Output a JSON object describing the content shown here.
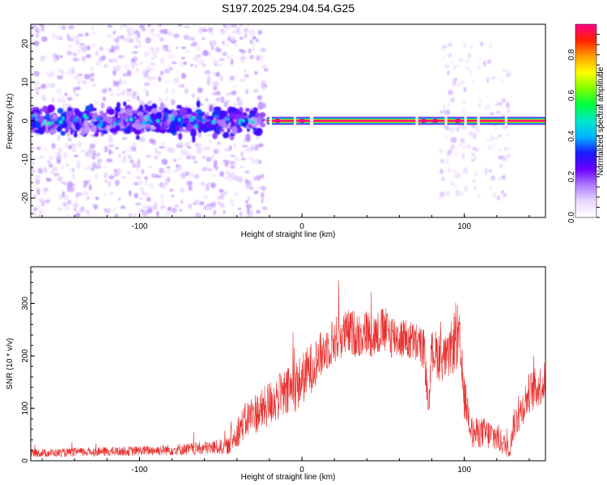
{
  "title": "S197.2025.294.04.54.G25",
  "chart_data": [
    {
      "type": "heatmap",
      "name": "spectrogram",
      "xlabel": "Height of straight line (km)",
      "ylabel": "Frequency (Hz)",
      "xlim": [
        -167,
        150
      ],
      "ylim": [
        -25,
        25
      ],
      "xticks": [
        -100,
        0,
        100
      ],
      "yticks": [
        -20,
        -10,
        0,
        10,
        20
      ],
      "colorbar": {
        "label": "Normalized spectral amplitude",
        "range": [
          0,
          0.95
        ],
        "ticks": [
          0.0,
          0.2,
          0.4,
          0.6,
          0.8
        ],
        "colors": [
          "#ffffff",
          "#ead9ff",
          "#b07cff",
          "#6a00ff",
          "#1a1aff",
          "#00b4ff",
          "#00e8c8",
          "#00ff40",
          "#80ff00",
          "#ffff00",
          "#ffa000",
          "#ff2000",
          "#ff0088"
        ]
      },
      "features": [
        {
          "label": "scattered noise region",
          "x_range": [
            -167,
            -30
          ],
          "freq_spread_hz": 25,
          "amplitude": 0.15
        },
        {
          "label": "dense low-frequency band",
          "x_range": [
            -167,
            -30
          ],
          "freq_center_hz": 0,
          "freq_halfwidth_hz": 5,
          "amplitude": 0.25
        },
        {
          "label": "carrier line",
          "x_range": [
            -30,
            150
          ],
          "freq_center_hz": 0,
          "amplitude": 0.95
        },
        {
          "label": "upper noise patch",
          "x_range": [
            85,
            128
          ],
          "freq_spread_hz": 20,
          "amplitude": 0.12
        }
      ]
    },
    {
      "type": "line",
      "name": "snr",
      "xlabel": "Height of straight line (km)",
      "ylabel": "SNR (10 * v/v)",
      "xlim": [
        -167,
        150
      ],
      "ylim": [
        0,
        370
      ],
      "xticks": [
        -100,
        0,
        100
      ],
      "yticks": [
        0,
        100,
        200,
        300
      ],
      "color": "#e8302e",
      "series": [
        {
          "name": "SNR",
          "x": [
            -167,
            -150,
            -130,
            -110,
            -90,
            -70,
            -55,
            -45,
            -40,
            -35,
            -30,
            -25,
            -20,
            -15,
            -10,
            -5,
            0,
            5,
            10,
            15,
            20,
            25,
            30,
            35,
            40,
            45,
            50,
            55,
            60,
            65,
            70,
            75,
            78,
            80,
            85,
            90,
            95,
            97,
            100,
            103,
            105,
            110,
            115,
            120,
            125,
            128,
            130,
            135,
            140,
            145,
            150
          ],
          "y": [
            15,
            15,
            17,
            18,
            20,
            22,
            25,
            28,
            55,
            75,
            90,
            95,
            110,
            120,
            125,
            140,
            155,
            175,
            195,
            215,
            230,
            240,
            245,
            240,
            245,
            240,
            250,
            240,
            235,
            230,
            225,
            215,
            100,
            210,
            200,
            195,
            240,
            220,
            120,
            85,
            50,
            55,
            50,
            45,
            30,
            20,
            65,
            95,
            130,
            140,
            150
          ],
          "spread": [
            8,
            8,
            9,
            9,
            10,
            12,
            14,
            16,
            30,
            35,
            40,
            40,
            45,
            45,
            50,
            50,
            50,
            50,
            45,
            45,
            45,
            45,
            45,
            45,
            45,
            45,
            45,
            45,
            40,
            40,
            40,
            40,
            25,
            40,
            50,
            40,
            70,
            60,
            40,
            35,
            30,
            30,
            30,
            30,
            20,
            15,
            30,
            35,
            40,
            40,
            40
          ]
        }
      ]
    }
  ]
}
